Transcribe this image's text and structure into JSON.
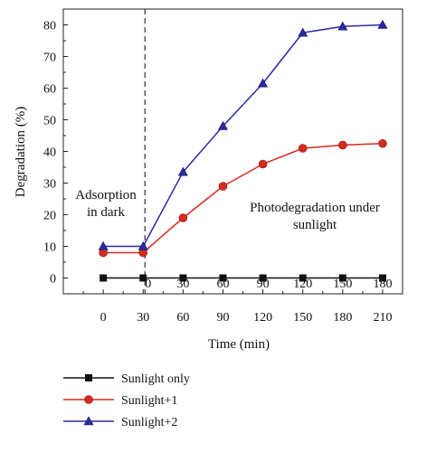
{
  "chart_data": {
    "type": "line",
    "xlabel": "Time (min)",
    "ylabel": "Degradation (%)",
    "ylim": [
      -5,
      85
    ],
    "yticks": [
      0,
      10,
      20,
      30,
      40,
      50,
      60,
      70,
      80
    ],
    "x": [
      0,
      30,
      60,
      90,
      120,
      150,
      180,
      210
    ],
    "xticks": [
      0,
      30,
      60,
      90,
      120,
      150,
      180,
      210
    ],
    "xlim": [
      -30,
      225
    ],
    "secondary_xticks": [
      {
        "x": 30,
        "label": "0"
      },
      {
        "x": 60,
        "label": "30"
      },
      {
        "x": 90,
        "label": "60"
      },
      {
        "x": 120,
        "label": "90"
      },
      {
        "x": 150,
        "label": "120"
      },
      {
        "x": 180,
        "label": "150"
      },
      {
        "x": 210,
        "label": "180"
      }
    ],
    "divider_x": 30,
    "annotations": [
      {
        "lines": [
          "Adsorption",
          "in dark"
        ]
      },
      {
        "lines": [
          "Photodegradation under",
          "sunlight"
        ]
      }
    ],
    "series": [
      {
        "name": "Sunlight only",
        "color": "#111111",
        "marker": "square",
        "values": [
          0,
          0,
          0,
          0,
          0,
          0,
          0,
          0
        ]
      },
      {
        "name": "Sunlight+1",
        "color": "#d62b1f",
        "marker": "circle",
        "values": [
          8,
          8,
          19,
          29,
          36,
          41,
          42,
          42.5
        ]
      },
      {
        "name": "Sunlight+2",
        "color": "#2a2aa6",
        "marker": "triangle",
        "values": [
          10,
          10,
          33.5,
          48,
          61.5,
          77.5,
          79.5,
          80
        ]
      }
    ],
    "legend": "bottom-left",
    "grid": false
  }
}
